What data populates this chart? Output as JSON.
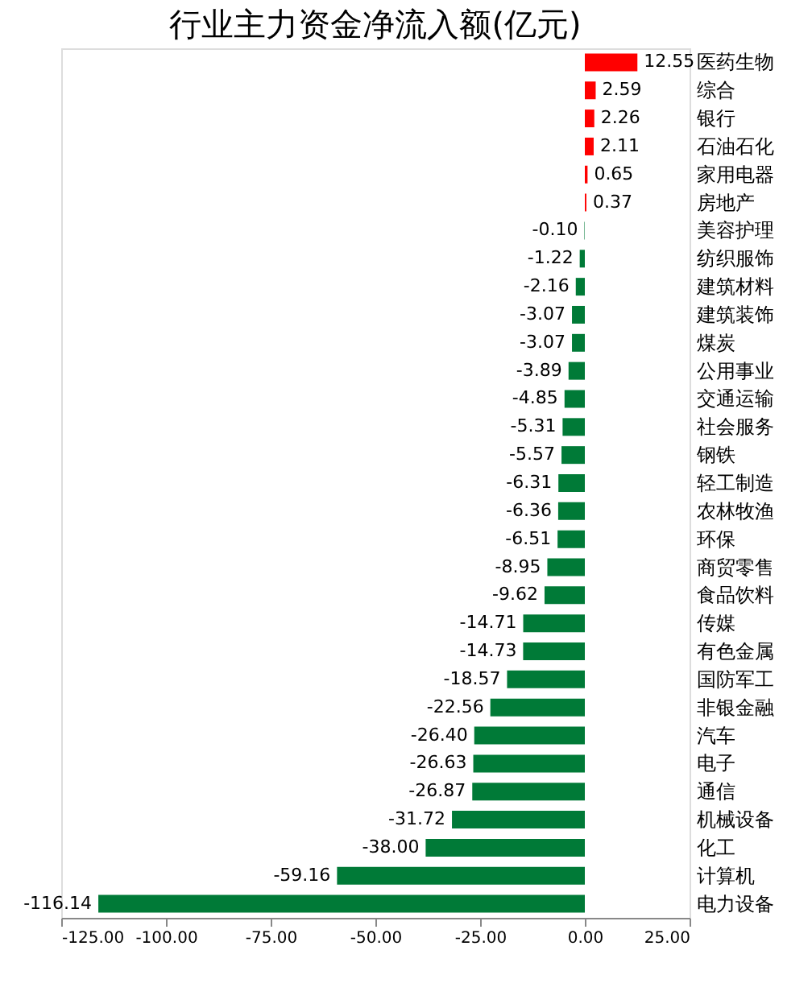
{
  "chart_data": {
    "type": "bar",
    "orientation": "horizontal",
    "title": "行业主力资金净流入额(亿元)",
    "categories": [
      "医药生物",
      "综合",
      "银行",
      "石油石化",
      "家用电器",
      "房地产",
      "美容护理",
      "纺织服饰",
      "建筑材料",
      "建筑装饰",
      "煤炭",
      "公用事业",
      "交通运输",
      "社会服务",
      "钢铁",
      "轻工制造",
      "农林牧渔",
      "环保",
      "商贸零售",
      "食品饮料",
      "传媒",
      "有色金属",
      "国防军工",
      "非银金融",
      "汽车",
      "电子",
      "通信",
      "机械设备",
      "化工",
      "计算机",
      "电力设备"
    ],
    "values": [
      12.55,
      2.59,
      2.26,
      2.11,
      0.65,
      0.37,
      -0.1,
      -1.22,
      -2.16,
      -3.07,
      -3.07,
      -3.89,
      -4.85,
      -5.31,
      -5.57,
      -6.31,
      -6.36,
      -6.51,
      -8.95,
      -9.62,
      -14.71,
      -14.73,
      -18.57,
      -22.56,
      -26.4,
      -26.63,
      -26.87,
      -31.72,
      -38.0,
      -59.16,
      -116.14
    ],
    "colors": [
      "#ff0000",
      "#ff0000",
      "#ff0000",
      "#ff0000",
      "#ff0000",
      "#ff0000",
      "#007a37",
      "#007a37",
      "#007a37",
      "#007a37",
      "#007a37",
      "#007a37",
      "#007a37",
      "#007a37",
      "#007a37",
      "#007a37",
      "#007a37",
      "#007a37",
      "#007a37",
      "#007a37",
      "#007a37",
      "#007a37",
      "#007a37",
      "#007a37",
      "#007a37",
      "#007a37",
      "#007a37",
      "#007a37",
      "#007a37",
      "#007a37",
      "#007a37"
    ],
    "xlim": [
      -125,
      25
    ],
    "xticks": [
      {
        "value": -125,
        "label": "-125.00"
      },
      {
        "value": -100,
        "label": "-100.00"
      },
      {
        "value": -75,
        "label": "-75.00"
      },
      {
        "value": -50,
        "label": "-50.00"
      },
      {
        "value": -25,
        "label": "-25.00"
      },
      {
        "value": 0,
        "label": "0.00"
      },
      {
        "value": 25,
        "label": "25.00"
      }
    ],
    "value_labels": [
      "12.55",
      "2.59",
      "2.26",
      "2.11",
      "0.65",
      "0.37",
      "-0.10",
      "-1.22",
      "-2.16",
      "-3.07",
      "-3.07",
      "-3.89",
      "-4.85",
      "-5.31",
      "-5.57",
      "-6.31",
      "-6.36",
      "-6.51",
      "-8.95",
      "-9.62",
      "-14.71",
      "-14.73",
      "-18.57",
      "-22.56",
      "-26.40",
      "-26.63",
      "-26.87",
      "-31.72",
      "-38.00",
      "-59.16",
      "-116.14"
    ],
    "grid": false
  }
}
